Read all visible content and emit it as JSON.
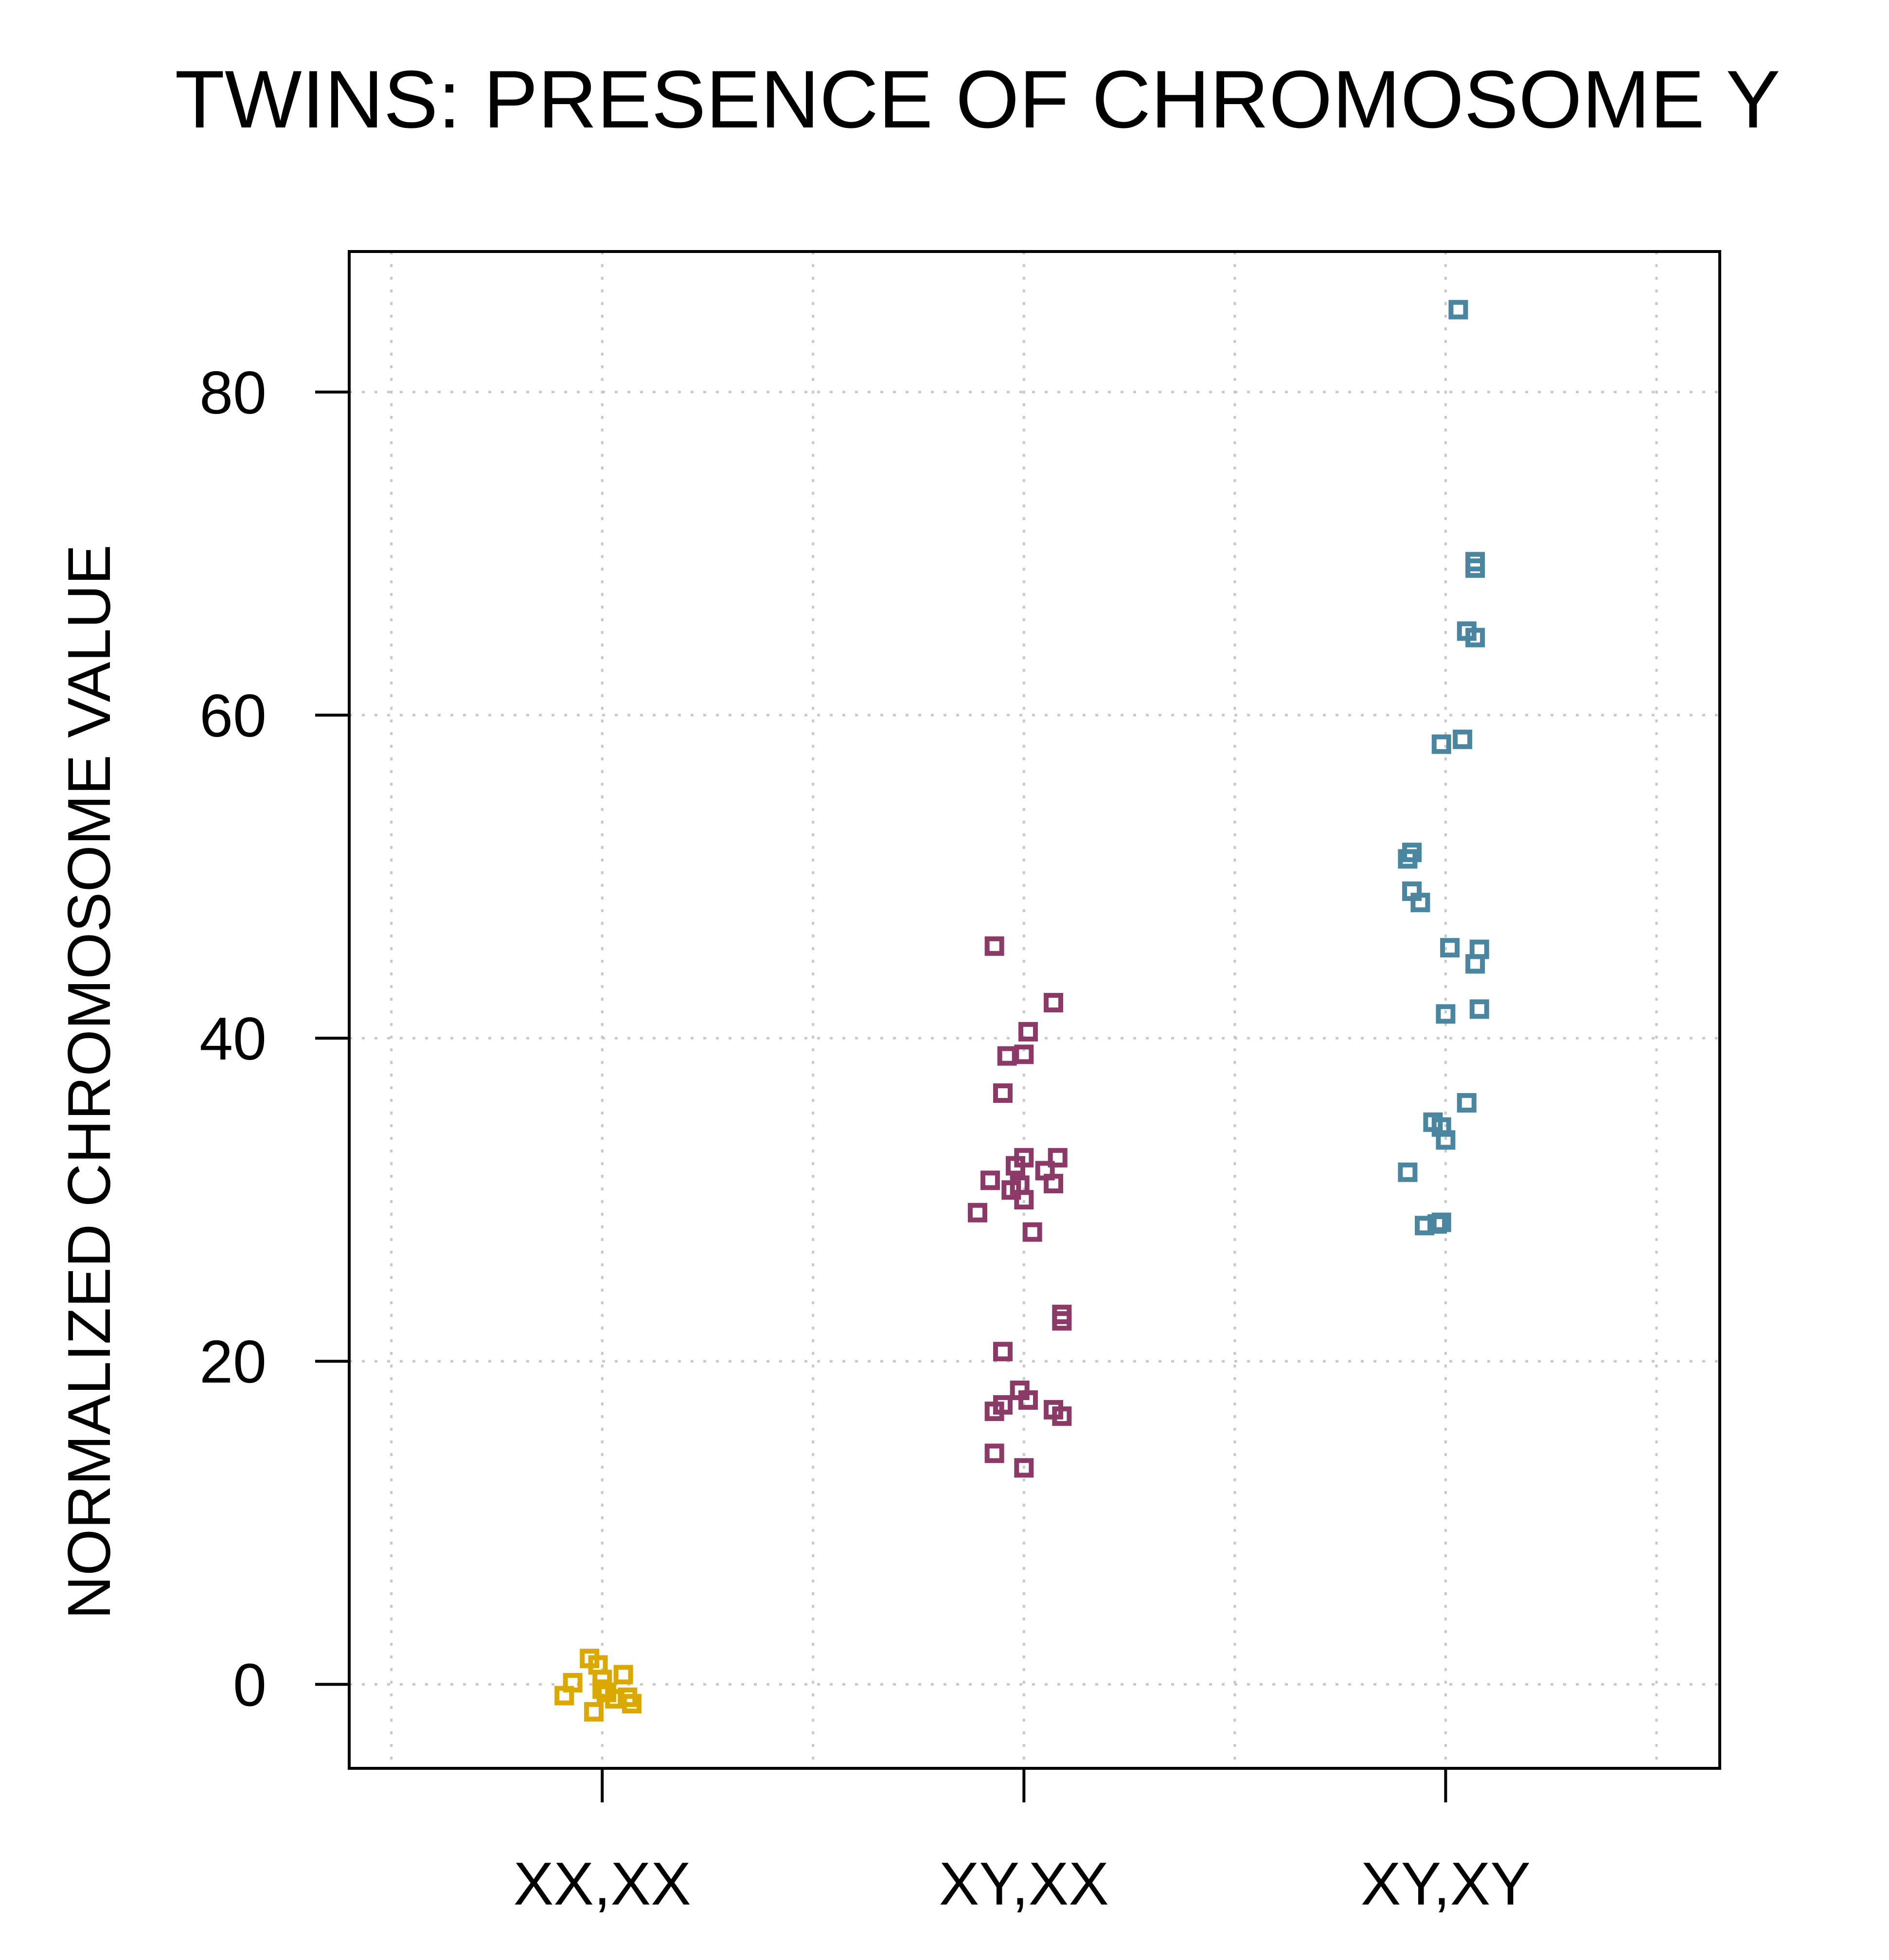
{
  "chart_data": {
    "type": "scatter",
    "title": "TWINS: PRESENCE OF CHROMOSOME Y",
    "xlabel": "",
    "ylabel": "NORMALIZED CHROMOSOME VALUE",
    "ylim": [
      -5.2,
      88.7
    ],
    "yticks": [
      0,
      20,
      40,
      60,
      80
    ],
    "categories": [
      "XX,XX",
      "XY,XX",
      "XY,XY"
    ],
    "grid": true,
    "series": [
      {
        "name": "XX,XX",
        "color": "#dba800",
        "points": [
          {
            "x": -0.09,
            "y": -0.7
          },
          {
            "x": -0.07,
            "y": 0.1
          },
          {
            "x": -0.03,
            "y": 1.6
          },
          {
            "x": -0.01,
            "y": 1.2
          },
          {
            "x": 0.0,
            "y": 0.3
          },
          {
            "x": -0.02,
            "y": -1.7
          },
          {
            "x": 0.01,
            "y": -0.5
          },
          {
            "x": 0.03,
            "y": -0.9
          },
          {
            "x": 0.05,
            "y": 0.6
          },
          {
            "x": 0.06,
            "y": -0.8
          },
          {
            "x": 0.07,
            "y": -1.2
          },
          {
            "x": 0.0,
            "y": -0.3
          }
        ]
      },
      {
        "name": "XY,XX",
        "color": "#8b3a68",
        "points": [
          {
            "x": -0.07,
            "y": 45.7
          },
          {
            "x": 0.07,
            "y": 42.2
          },
          {
            "x": 0.01,
            "y": 40.4
          },
          {
            "x": -0.04,
            "y": 38.9
          },
          {
            "x": 0.0,
            "y": 39.0
          },
          {
            "x": -0.05,
            "y": 36.6
          },
          {
            "x": 0.0,
            "y": 32.6
          },
          {
            "x": -0.02,
            "y": 32.1
          },
          {
            "x": 0.05,
            "y": 31.8
          },
          {
            "x": 0.08,
            "y": 32.6
          },
          {
            "x": -0.08,
            "y": 31.2
          },
          {
            "x": -0.03,
            "y": 30.6
          },
          {
            "x": -0.01,
            "y": 30.9
          },
          {
            "x": 0.0,
            "y": 30.0
          },
          {
            "x": 0.07,
            "y": 31.0
          },
          {
            "x": -0.11,
            "y": 29.2
          },
          {
            "x": 0.02,
            "y": 28.0
          },
          {
            "x": 0.09,
            "y": 22.9
          },
          {
            "x": 0.09,
            "y": 22.5
          },
          {
            "x": -0.05,
            "y": 20.6
          },
          {
            "x": -0.01,
            "y": 18.2
          },
          {
            "x": 0.01,
            "y": 17.6
          },
          {
            "x": -0.05,
            "y": 17.3
          },
          {
            "x": -0.07,
            "y": 16.9
          },
          {
            "x": 0.07,
            "y": 17.0
          },
          {
            "x": 0.09,
            "y": 16.6
          },
          {
            "x": -0.07,
            "y": 14.3
          },
          {
            "x": 0.0,
            "y": 13.4
          }
        ]
      },
      {
        "name": "XY,XY",
        "color": "#4a86a0",
        "points": [
          {
            "x": 0.03,
            "y": 85.1
          },
          {
            "x": 0.07,
            "y": 69.5
          },
          {
            "x": 0.07,
            "y": 69.1
          },
          {
            "x": 0.05,
            "y": 65.2
          },
          {
            "x": 0.07,
            "y": 64.8
          },
          {
            "x": -0.01,
            "y": 58.2
          },
          {
            "x": 0.04,
            "y": 58.5
          },
          {
            "x": -0.09,
            "y": 51.1
          },
          {
            "x": -0.08,
            "y": 51.5
          },
          {
            "x": -0.08,
            "y": 49.1
          },
          {
            "x": -0.06,
            "y": 48.4
          },
          {
            "x": 0.01,
            "y": 45.6
          },
          {
            "x": 0.08,
            "y": 45.5
          },
          {
            "x": 0.07,
            "y": 44.6
          },
          {
            "x": 0.08,
            "y": 41.8
          },
          {
            "x": 0.0,
            "y": 41.5
          },
          {
            "x": 0.05,
            "y": 36.0
          },
          {
            "x": -0.03,
            "y": 34.8
          },
          {
            "x": -0.01,
            "y": 34.5
          },
          {
            "x": 0.0,
            "y": 33.7
          },
          {
            "x": -0.09,
            "y": 31.7
          },
          {
            "x": -0.05,
            "y": 28.4
          },
          {
            "x": -0.02,
            "y": 28.5
          },
          {
            "x": -0.01,
            "y": 28.6
          }
        ]
      }
    ]
  }
}
